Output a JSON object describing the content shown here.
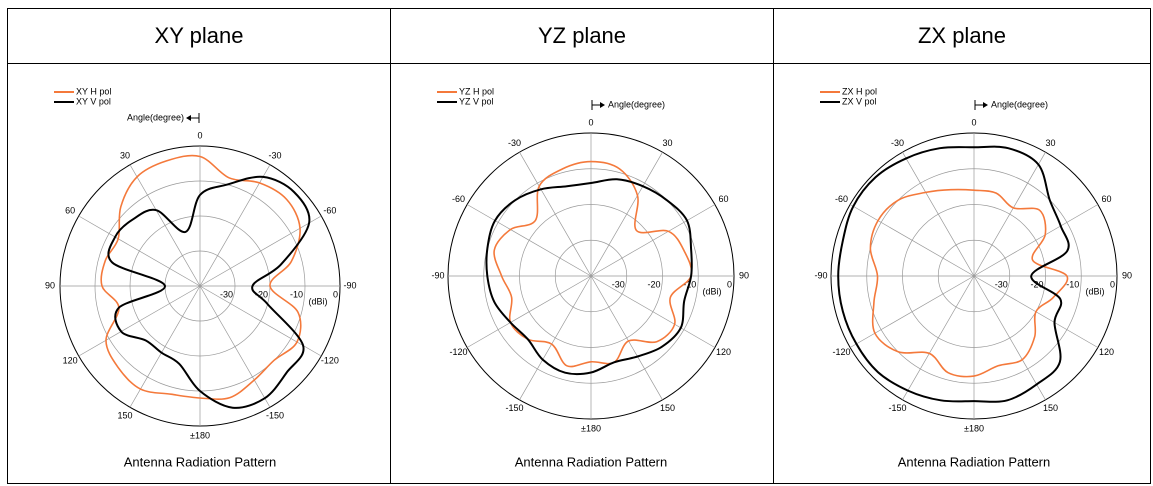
{
  "table": {
    "headers": [
      "XY plane",
      "YZ plane",
      "ZX plane"
    ]
  },
  "chart_data": [
    {
      "type": "polar",
      "title": "Antenna Radiation Pattern",
      "annotation": "Angle(degree)",
      "r_label": "(dBi)",
      "direction": "counterclockwise",
      "theta": [
        0,
        15,
        30,
        45,
        60,
        75,
        90,
        105,
        120,
        135,
        150,
        165,
        180,
        195,
        210,
        225,
        240,
        255,
        270,
        285,
        300,
        315,
        330,
        345
      ],
      "thetaticks": [
        0,
        30,
        60,
        90,
        120,
        150,
        {
          "value": 180,
          "label": "±180"
        },
        -150,
        -120,
        -90,
        -60,
        -30
      ],
      "rlim": [
        -40,
        0
      ],
      "rticks": [
        -30,
        -20,
        -10,
        0
      ],
      "grid": true,
      "series": [
        {
          "name": "XY H pol",
          "color": "#f4793b",
          "values": [
            -3,
            -3,
            -4,
            -8,
            -13,
            -12,
            -12,
            -16,
            -9,
            -7,
            -6,
            -8,
            -8,
            -7,
            -9,
            -10,
            -8,
            -11,
            -20,
            -13,
            -7,
            -5,
            -6,
            -8
          ]
        },
        {
          "name": "XY V pol",
          "color": "#000000",
          "values": [
            -14,
            -24,
            -15,
            -13,
            -12,
            -14,
            -30,
            -16,
            -14,
            -18,
            -18,
            -17,
            -10,
            -4,
            -3,
            -5,
            -6,
            -20,
            -25,
            -16,
            -4,
            -2,
            -4,
            -10
          ]
        }
      ]
    },
    {
      "type": "polar",
      "title": "Antenna Radiation Pattern",
      "annotation": "Angle(degree)",
      "r_label": "(dBi)",
      "direction": "clockwise",
      "theta": [
        0,
        15,
        30,
        45,
        60,
        75,
        90,
        105,
        120,
        135,
        150,
        165,
        180,
        195,
        210,
        225,
        240,
        255,
        270,
        285,
        300,
        315,
        330,
        345
      ],
      "thetaticks": [
        0,
        30,
        60,
        90,
        120,
        150,
        {
          "value": 180,
          "label": "±180"
        },
        -150,
        -120,
        -90,
        -60,
        -30
      ],
      "rlim": [
        -40,
        0
      ],
      "rticks": [
        -30,
        -20,
        -10,
        0
      ],
      "grid": true,
      "series": [
        {
          "name": "YZ H pol",
          "color": "#f4793b",
          "values": [
            -8,
            -9,
            -14,
            -22,
            -15,
            -13,
            -12,
            -17,
            -13,
            -14,
            -19,
            -15,
            -16,
            -14,
            -18,
            -15,
            -14,
            -17,
            -15,
            -12,
            -14,
            -18,
            -11,
            -9
          ]
        },
        {
          "name": "YZ V pol",
          "color": "#000000",
          "values": [
            -14,
            -12,
            -11,
            -10,
            -9,
            -11,
            -12,
            -13,
            -11,
            -12,
            -14,
            -15,
            -13,
            -12,
            -13,
            -15,
            -14,
            -12,
            -11,
            -10,
            -9,
            -10,
            -12,
            -14
          ]
        }
      ]
    },
    {
      "type": "polar",
      "title": "Antenna Radiation Pattern",
      "annotation": "Angle(degree)",
      "r_label": "(dBi)",
      "direction": "clockwise",
      "theta": [
        0,
        15,
        30,
        45,
        60,
        75,
        90,
        105,
        120,
        135,
        150,
        165,
        180,
        195,
        210,
        225,
        240,
        255,
        270,
        285,
        300,
        315,
        330,
        345
      ],
      "thetaticks": [
        0,
        30,
        60,
        90,
        120,
        150,
        {
          "value": 180,
          "label": "±180"
        },
        -150,
        -120,
        -90,
        -60,
        -30
      ],
      "rlim": [
        -40,
        0
      ],
      "rticks": [
        -30,
        -20,
        -10,
        0
      ],
      "grid": true,
      "series": [
        {
          "name": "ZX H pol",
          "color": "#f4793b",
          "values": [
            -16,
            -16,
            -18,
            -14,
            -17,
            -23,
            -14,
            -17,
            -20,
            -16,
            -13,
            -14,
            -12,
            -12,
            -15,
            -10,
            -8,
            -11,
            -13,
            -10,
            -9,
            -10,
            -13,
            -15
          ]
        },
        {
          "name": "ZX V pol",
          "color": "#000000",
          "values": [
            -4,
            -3,
            -4,
            -10,
            -12,
            -13,
            -24,
            -15,
            -14,
            -6,
            -5,
            -4,
            -5,
            -4,
            -3,
            -2,
            -2,
            -2,
            -2,
            -2,
            -1,
            -1,
            -2,
            -3
          ]
        }
      ]
    }
  ]
}
